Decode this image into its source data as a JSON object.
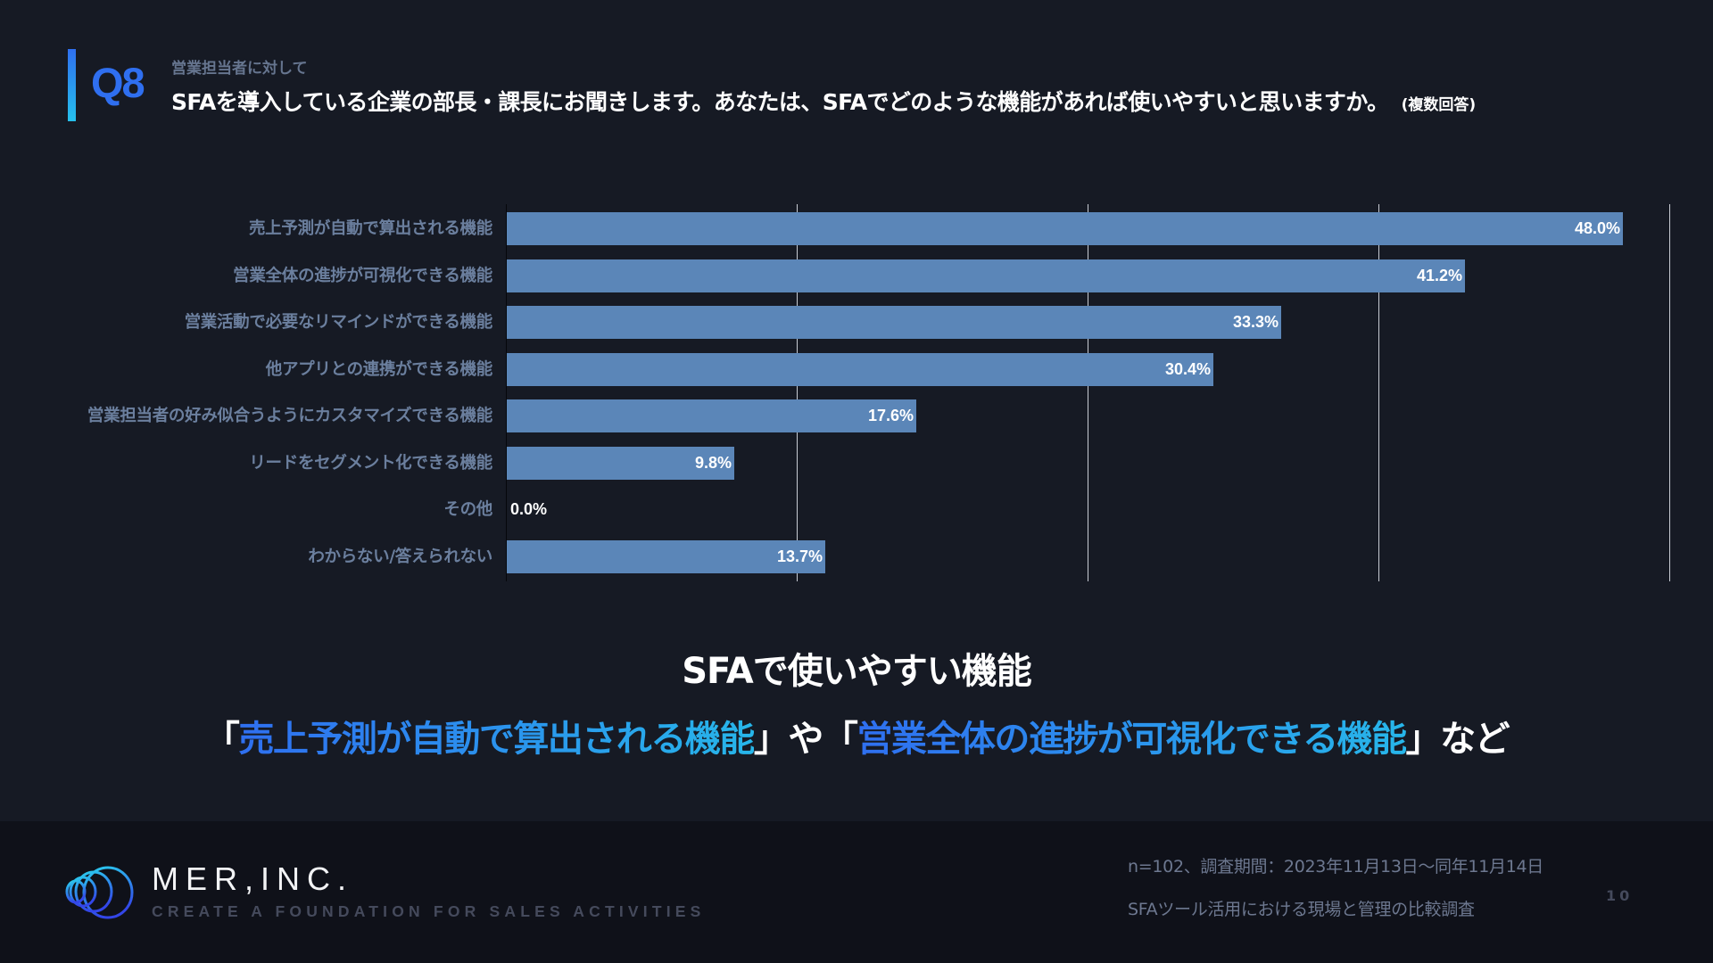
{
  "header": {
    "question_number": "Q8",
    "subtitle": "営業担当者に対して",
    "title": "SFAを導入している企業の部長・課長にお聞きします。あなたは、SFAでどのような機能があれば使いやすいと思いますか。",
    "note": "(複数回答)",
    "accent_color": "#2f6ff0"
  },
  "chart_data": {
    "type": "bar",
    "orientation": "horizontal",
    "title": "",
    "xlabel": "",
    "ylabel": "",
    "xlim": [
      0,
      50
    ],
    "grid": true,
    "gridlines": [
      0,
      12.5,
      25,
      37.5,
      50
    ],
    "legend": null,
    "bar_color": "#5b86b8",
    "categories": [
      "売上予測が自動で算出される機能",
      "営業全体の進捗が可視化できる機能",
      "営業活動で必要なリマインドができる機能",
      "他アプリとの連携ができる機能",
      "営業担当者の好み似合うようにカスタマイズできる機能",
      "リードをセグメント化できる機能",
      "その他",
      "わからない/答えられない"
    ],
    "values": [
      48.0,
      41.2,
      33.3,
      30.4,
      17.6,
      9.8,
      0.0,
      13.7
    ],
    "value_labels": [
      "48.0%",
      "41.2%",
      "33.3%",
      "30.4%",
      "17.6%",
      "9.8%",
      "0.0%",
      "13.7%"
    ],
    "unit": "%"
  },
  "summary": {
    "title": "SFAで使いやすい機能",
    "open_1": "「",
    "highlight_1": "売上予測が自動で算出される機能",
    "close_1": "」",
    "connector": "や",
    "open_2": "「",
    "highlight_2": "営業全体の進捗が可視化できる機能",
    "close_2": "」",
    "suffix": "など",
    "highlight_colors": [
      "#2f6ff0",
      "#27b6ea"
    ]
  },
  "footer": {
    "brand_name": "MER,INC.",
    "tagline": "CREATE A FOUNDATION FOR SALES ACTIVITIES",
    "survey_meta": "n=102、調査期間：2023年11月13日〜同年11月14日",
    "survey_name": "SFAツール活用における現場と管理の比較調査",
    "page_number": "10"
  }
}
